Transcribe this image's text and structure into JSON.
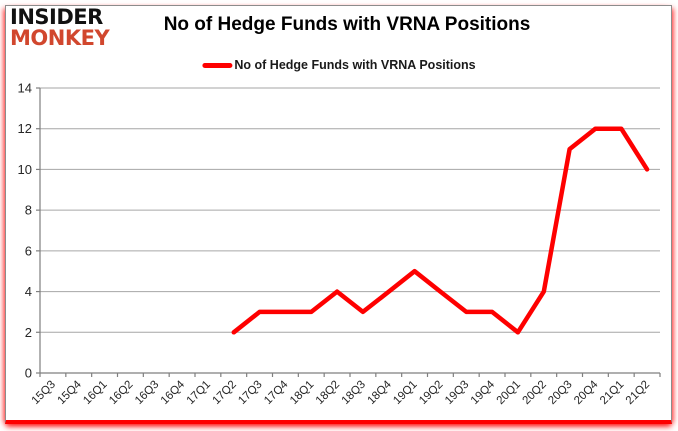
{
  "logo": {
    "line1": "INSIDER",
    "line2": "MONKEY"
  },
  "header": {
    "title": "No of Hedge Funds with VRNA Positions"
  },
  "legend": {
    "label": "No of Hedge Funds with VRNA Positions"
  },
  "colors": {
    "line": "#fe0000",
    "logo_red": "#d1472e",
    "grid": "#a6a6a6",
    "axis": "#7f7f7f",
    "text": "#262626",
    "border_glow": "#ff0000"
  },
  "chart_data": {
    "type": "line",
    "title": "No of Hedge Funds with VRNA Positions",
    "categories": [
      "15Q3",
      "15Q4",
      "16Q1",
      "16Q2",
      "16Q3",
      "16Q4",
      "17Q1",
      "17Q2",
      "17Q3",
      "17Q4",
      "18Q1",
      "18Q2",
      "18Q3",
      "18Q4",
      "19Q1",
      "19Q2",
      "19Q3",
      "19Q4",
      "20Q1",
      "20Q2",
      "20Q3",
      "20Q4",
      "21Q1",
      "21Q2"
    ],
    "series": [
      {
        "name": "No of Hedge Funds with VRNA Positions",
        "color": "#fe0000",
        "values": [
          null,
          null,
          null,
          null,
          null,
          null,
          null,
          2,
          3,
          3,
          3,
          4,
          3,
          4,
          5,
          4,
          3,
          3,
          2,
          4,
          11,
          12,
          12,
          10
        ]
      }
    ],
    "xlabel": "",
    "ylabel": "",
    "ylim": [
      0,
      14
    ],
    "ytick_step": 2,
    "grid": true,
    "legend_position": "top"
  }
}
